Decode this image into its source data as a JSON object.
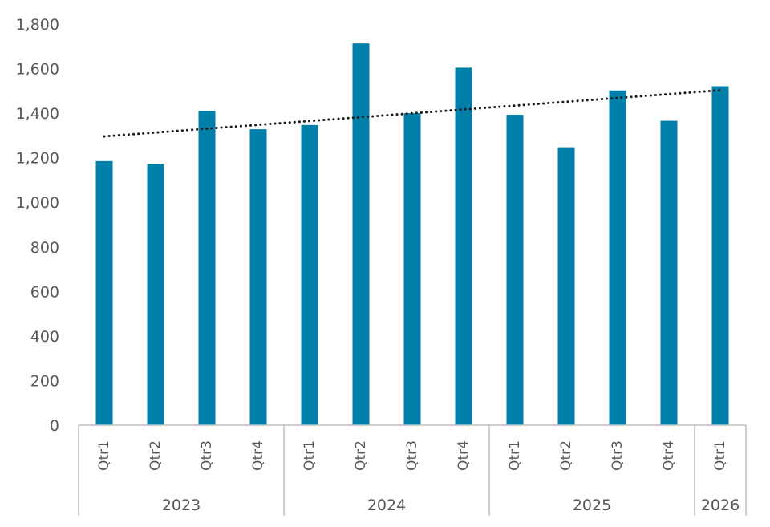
{
  "chart_data": {
    "type": "bar",
    "title": "",
    "xlabel": "",
    "ylabel": "",
    "ylim": [
      0,
      1800
    ],
    "yticks": [
      "0",
      "200",
      "400",
      "600",
      "800",
      "1,000",
      "1,200",
      "1,400",
      "1,600",
      "1,800"
    ],
    "grid": false,
    "legend": "none",
    "colors": {
      "bar": "#0080A8",
      "trendline": "#1a1a1a",
      "axis": "#BFBFBF",
      "text": "#595959"
    },
    "groups": [
      {
        "label": "2023",
        "categories": [
          "Qtr1",
          "Qtr2",
          "Qtr3",
          "Qtr4"
        ]
      },
      {
        "label": "2024",
        "categories": [
          "Qtr1",
          "Qtr2",
          "Qtr3",
          "Qtr4"
        ]
      },
      {
        "label": "2025",
        "categories": [
          "Qtr1",
          "Qtr2",
          "Qtr3",
          "Qtr4"
        ]
      },
      {
        "label": "2026",
        "categories": [
          "Qtr1"
        ]
      }
    ],
    "values": [
      1185,
      1172,
      1410,
      1328,
      1347,
      1713,
      1400,
      1604,
      1393,
      1247,
      1502,
      1366,
      1521
    ],
    "trendline": {
      "type": "linear",
      "style": "dotted",
      "start": 1296,
      "end": 1503
    }
  }
}
